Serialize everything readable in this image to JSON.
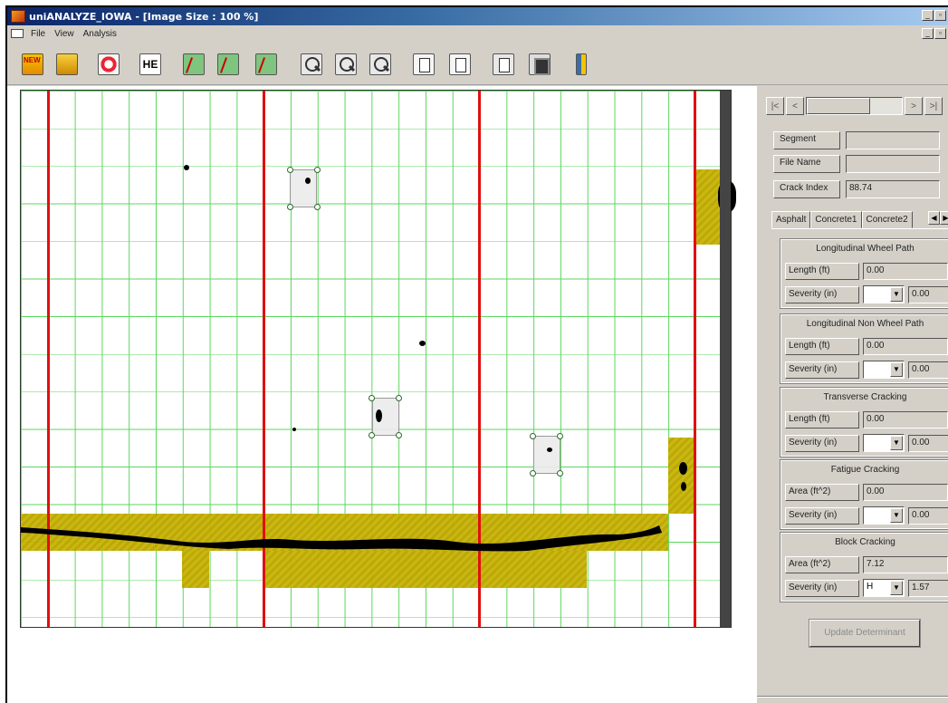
{
  "window": {
    "title": "uniANALYZE_IOWA - [Image Size : 100 %]",
    "title_buttons": [
      "_",
      "▫",
      "x"
    ]
  },
  "menu": {
    "items": [
      "File",
      "View",
      "Analysis"
    ]
  },
  "toolbar": {
    "buttons": [
      {
        "icon": "new-file-icon"
      },
      {
        "icon": "open-folder-icon"
      },
      {
        "icon": "refresh-icon"
      },
      {
        "icon": "he-icon",
        "label": "HE"
      },
      {
        "icon": "grid-select-icon"
      },
      {
        "icon": "grid-edit-icon"
      },
      {
        "icon": "grid-check-icon"
      },
      {
        "icon": "zoom-in-icon"
      },
      {
        "icon": "zoom-out-icon"
      },
      {
        "icon": "zoom-fit-icon"
      },
      {
        "icon": "page-view-icon"
      },
      {
        "icon": "page-detail-icon"
      },
      {
        "icon": "edit-report-icon"
      },
      {
        "icon": "save-icon"
      },
      {
        "icon": "exit-icon"
      }
    ]
  },
  "navigation": {
    "first": "|<",
    "prev": "<",
    "next": ">",
    "last": ">|"
  },
  "info": {
    "segment_label": "Segment",
    "segment_value": "",
    "file_name_label": "File Name",
    "file_name_value": "",
    "crack_index_label": "Crack Index",
    "crack_index_value": "88.74"
  },
  "tabs": [
    "Asphalt",
    "Concrete1",
    "Concrete2"
  ],
  "asphalt": {
    "groups": [
      {
        "title": "Longitudinal Wheel Path",
        "measure_label": "Length (ft)",
        "measure_value": "0.00",
        "severity_label": "Severity (in)",
        "severity_select": "",
        "severity_value": "0.00"
      },
      {
        "title": "Longitudinal Non Wheel Path",
        "measure_label": "Length (ft)",
        "measure_value": "0.00",
        "severity_label": "Severity (in)",
        "severity_select": "",
        "severity_value": "0.00"
      },
      {
        "title": "Transverse Cracking",
        "measure_label": "Length (ft)",
        "measure_value": "0.00",
        "severity_label": "Severity (in)",
        "severity_select": "",
        "severity_value": "0.00"
      },
      {
        "title": "Fatigue Cracking",
        "measure_label": "Area (ft^2)",
        "measure_value": "0.00",
        "severity_label": "Severity (in)",
        "severity_select": "",
        "severity_value": "0.00"
      },
      {
        "title": "Block Cracking",
        "measure_label": "Area (ft^2)",
        "measure_value": "7.12",
        "severity_label": "Severity (in)",
        "severity_select": "H",
        "severity_value": "1.57"
      }
    ]
  },
  "update_button": "Update Determinant",
  "colors": {
    "grid": "#5cd65c",
    "lane_line": "#e01010",
    "crack_cell": "#c8b400"
  }
}
